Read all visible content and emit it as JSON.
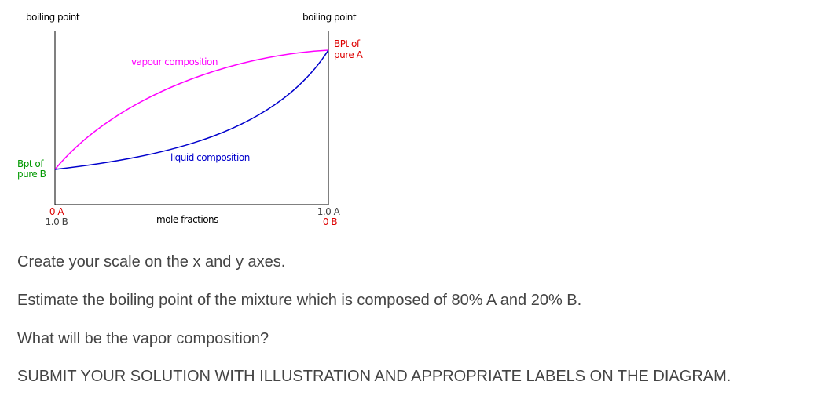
{
  "diagram": {
    "left_axis_label": "boiling point",
    "right_axis_label": "boiling point",
    "pure_a_label": [
      "BPt of",
      "pure A"
    ],
    "pure_b_label": [
      "Bpt of",
      "pure B"
    ],
    "vapour_label": "vapour composition",
    "liquid_label": "liquid composition",
    "x_axis_label": "mole fractions",
    "left_end_label": [
      "0 A",
      "1.0 B"
    ],
    "right_end_label": [
      "1.0 A",
      "0 B"
    ]
  },
  "text": {
    "lines": [
      "Create your scale on the x and y axes.",
      "Estimate the boiling point of the mixture which is composed of 80% A and 20% B.",
      "What will be the vapor composition?",
      "SUBMIT YOUR SOLUTION WITH ILLUSTRATION AND APPROPRIATE LABELS ON THE DIAGRAM."
    ]
  }
}
